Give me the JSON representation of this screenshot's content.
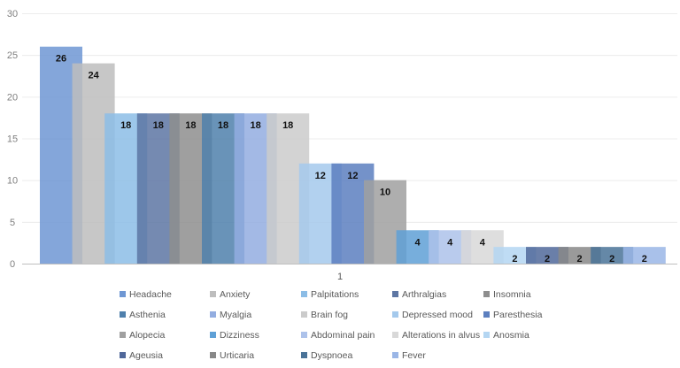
{
  "chart_data": {
    "type": "bar",
    "title": "",
    "xlabel": "",
    "ylabel": "",
    "categories": [
      "1"
    ],
    "ylim": [
      0,
      30
    ],
    "yticks": [
      0,
      5,
      10,
      15,
      20,
      25,
      30
    ],
    "grid": true,
    "legend_placement": "bottom",
    "series": [
      {
        "name": "Headache",
        "values": [
          26
        ],
        "color": "#6f97d3"
      },
      {
        "name": "Anxiety",
        "values": [
          24
        ],
        "color": "#bdbdbd"
      },
      {
        "name": "Palpitations",
        "values": [
          18
        ],
        "color": "#8cbde6"
      },
      {
        "name": "Arthralgias",
        "values": [
          18
        ],
        "color": "#5d76a3"
      },
      {
        "name": "Insomnia",
        "values": [
          18
        ],
        "color": "#8e8e8e"
      },
      {
        "name": "Asthenia",
        "values": [
          18
        ],
        "color": "#4f80ac"
      },
      {
        "name": "Myalgia",
        "values": [
          18
        ],
        "color": "#93ade0"
      },
      {
        "name": "Brain fog",
        "values": [
          18
        ],
        "color": "#cbcbcb"
      },
      {
        "name": "Depressed mood",
        "values": [
          12
        ],
        "color": "#a4c9ec"
      },
      {
        "name": "Paresthesia",
        "values": [
          12
        ],
        "color": "#5c7fbf"
      },
      {
        "name": "Alopecia",
        "values": [
          10
        ],
        "color": "#a0a0a0"
      },
      {
        "name": "Dizziness",
        "values": [
          4
        ],
        "color": "#5fa0d6"
      },
      {
        "name": "Abdominal pain",
        "values": [
          4
        ],
        "color": "#adc2ea"
      },
      {
        "name": "Alterations in alvus",
        "values": [
          4
        ],
        "color": "#d8d8d8"
      },
      {
        "name": "Anosmia",
        "values": [
          2
        ],
        "color": "#b4d6f2"
      },
      {
        "name": "Ageusia",
        "values": [
          2
        ],
        "color": "#50689a"
      },
      {
        "name": "Urticaria",
        "values": [
          2
        ],
        "color": "#888888"
      },
      {
        "name": "Dyspnoea",
        "values": [
          2
        ],
        "color": "#4a7398"
      },
      {
        "name": "Fever",
        "values": [
          2
        ],
        "color": "#9ab6e6"
      }
    ]
  }
}
